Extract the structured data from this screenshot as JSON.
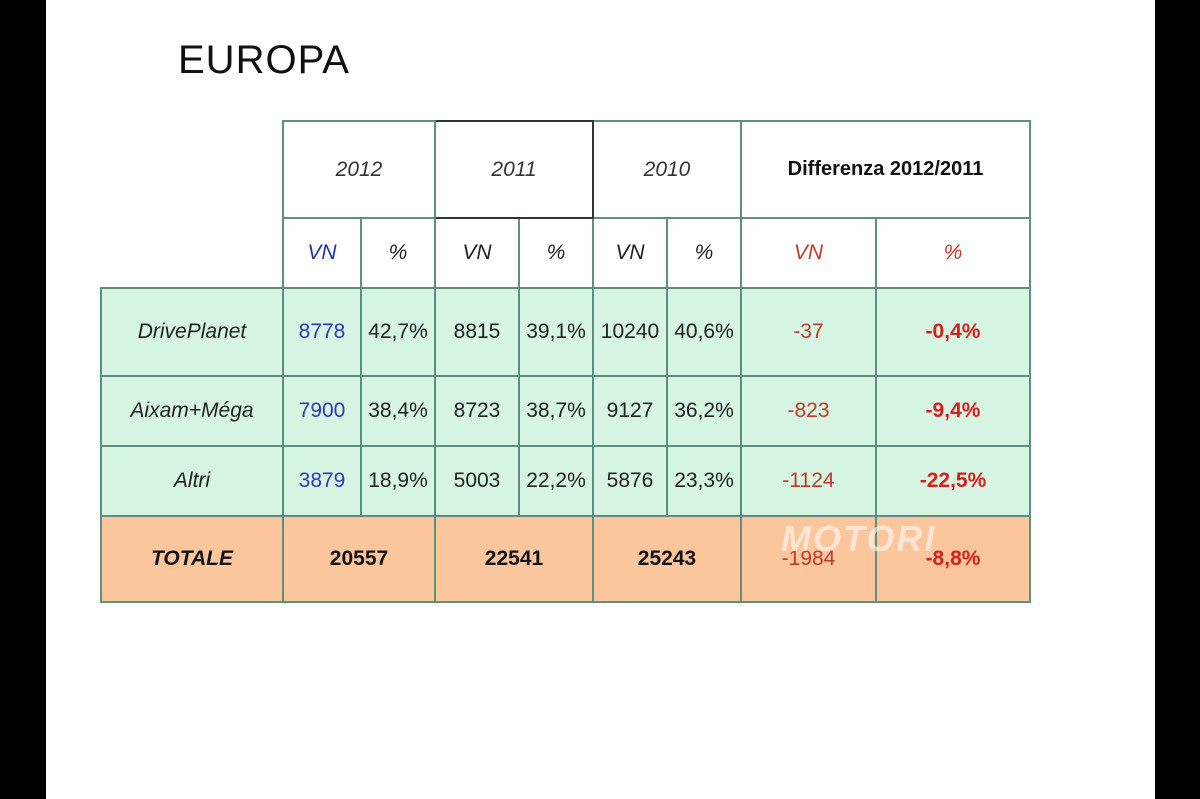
{
  "title": "EUROPA",
  "header": {
    "years": [
      "2012",
      "2011",
      "2010"
    ],
    "difference_label": "Differenza 2012/2011",
    "sub": [
      "VN",
      "%",
      "VN",
      "%",
      "VN",
      "%",
      "VN",
      "%"
    ]
  },
  "rows": [
    {
      "label": "DrivePlanet",
      "vn2012": "8778",
      "p2012": "42,7%",
      "vn2011": "8815",
      "p2011": "39,1%",
      "vn2010": "10240",
      "p2010": "40,6%",
      "dvn": "-37",
      "dp": "-0,4%"
    },
    {
      "label": "Aixam+Méga",
      "vn2012": "7900",
      "p2012": "38,4%",
      "vn2011": "8723",
      "p2011": "38,7%",
      "vn2010": "9127",
      "p2010": "36,2%",
      "dvn": "-823",
      "dp": "-9,4%"
    },
    {
      "label": "Altri",
      "vn2012": "3879",
      "p2012": "18,9%",
      "vn2011": "5003",
      "p2011": "22,2%",
      "vn2010": "5876",
      "p2010": "23,3%",
      "dvn": "-1124",
      "dp": "-22,5%"
    }
  ],
  "total": {
    "label": "TOTALE",
    "t2012": "20557",
    "t2011": "22541",
    "t2010": "25243",
    "dvn": "-1984",
    "dp": "-8,8%"
  },
  "watermark": "MOTORI",
  "colors": {
    "row_bg": "#d6f5e3",
    "total_bg": "#fcc69c",
    "border": "#5f8f7f",
    "vn_blue": "#2c3cb8",
    "diff_red": "#d32020"
  }
}
